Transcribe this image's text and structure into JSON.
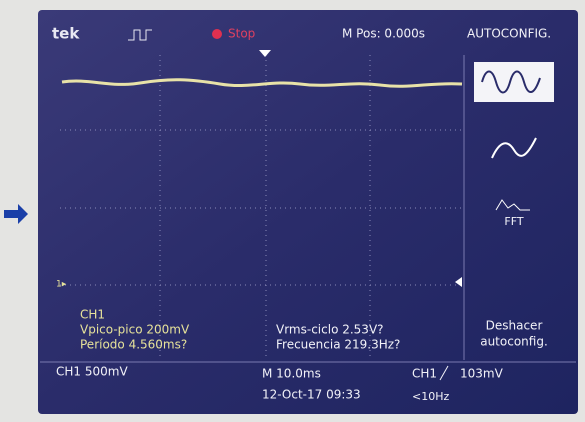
{
  "top_bar": {
    "logo": "tek",
    "status": "Stop",
    "position": "M Pos: 0.000s",
    "menu_title": "AUTOCONFIG."
  },
  "side_menu": {
    "fft": "FFT",
    "undo_line1": "Deshacer",
    "undo_line2": "autoconfig."
  },
  "measurements": {
    "channel": "CH1",
    "vpp": "Vpico-pico 200mV",
    "period": "Período 4.560ms?",
    "vrms": "Vrms-ciclo 2.53V?",
    "frequency": "Frecuencia 219.3Hz?"
  },
  "status_bar": {
    "channel_scale": "CH1  500mV",
    "timebase": "M 10.0ms",
    "datetime": "12-Oct-17 09:33",
    "trigger_channel": "CH1",
    "trigger_level": "103mV",
    "frequency_note": "<10Hz"
  }
}
